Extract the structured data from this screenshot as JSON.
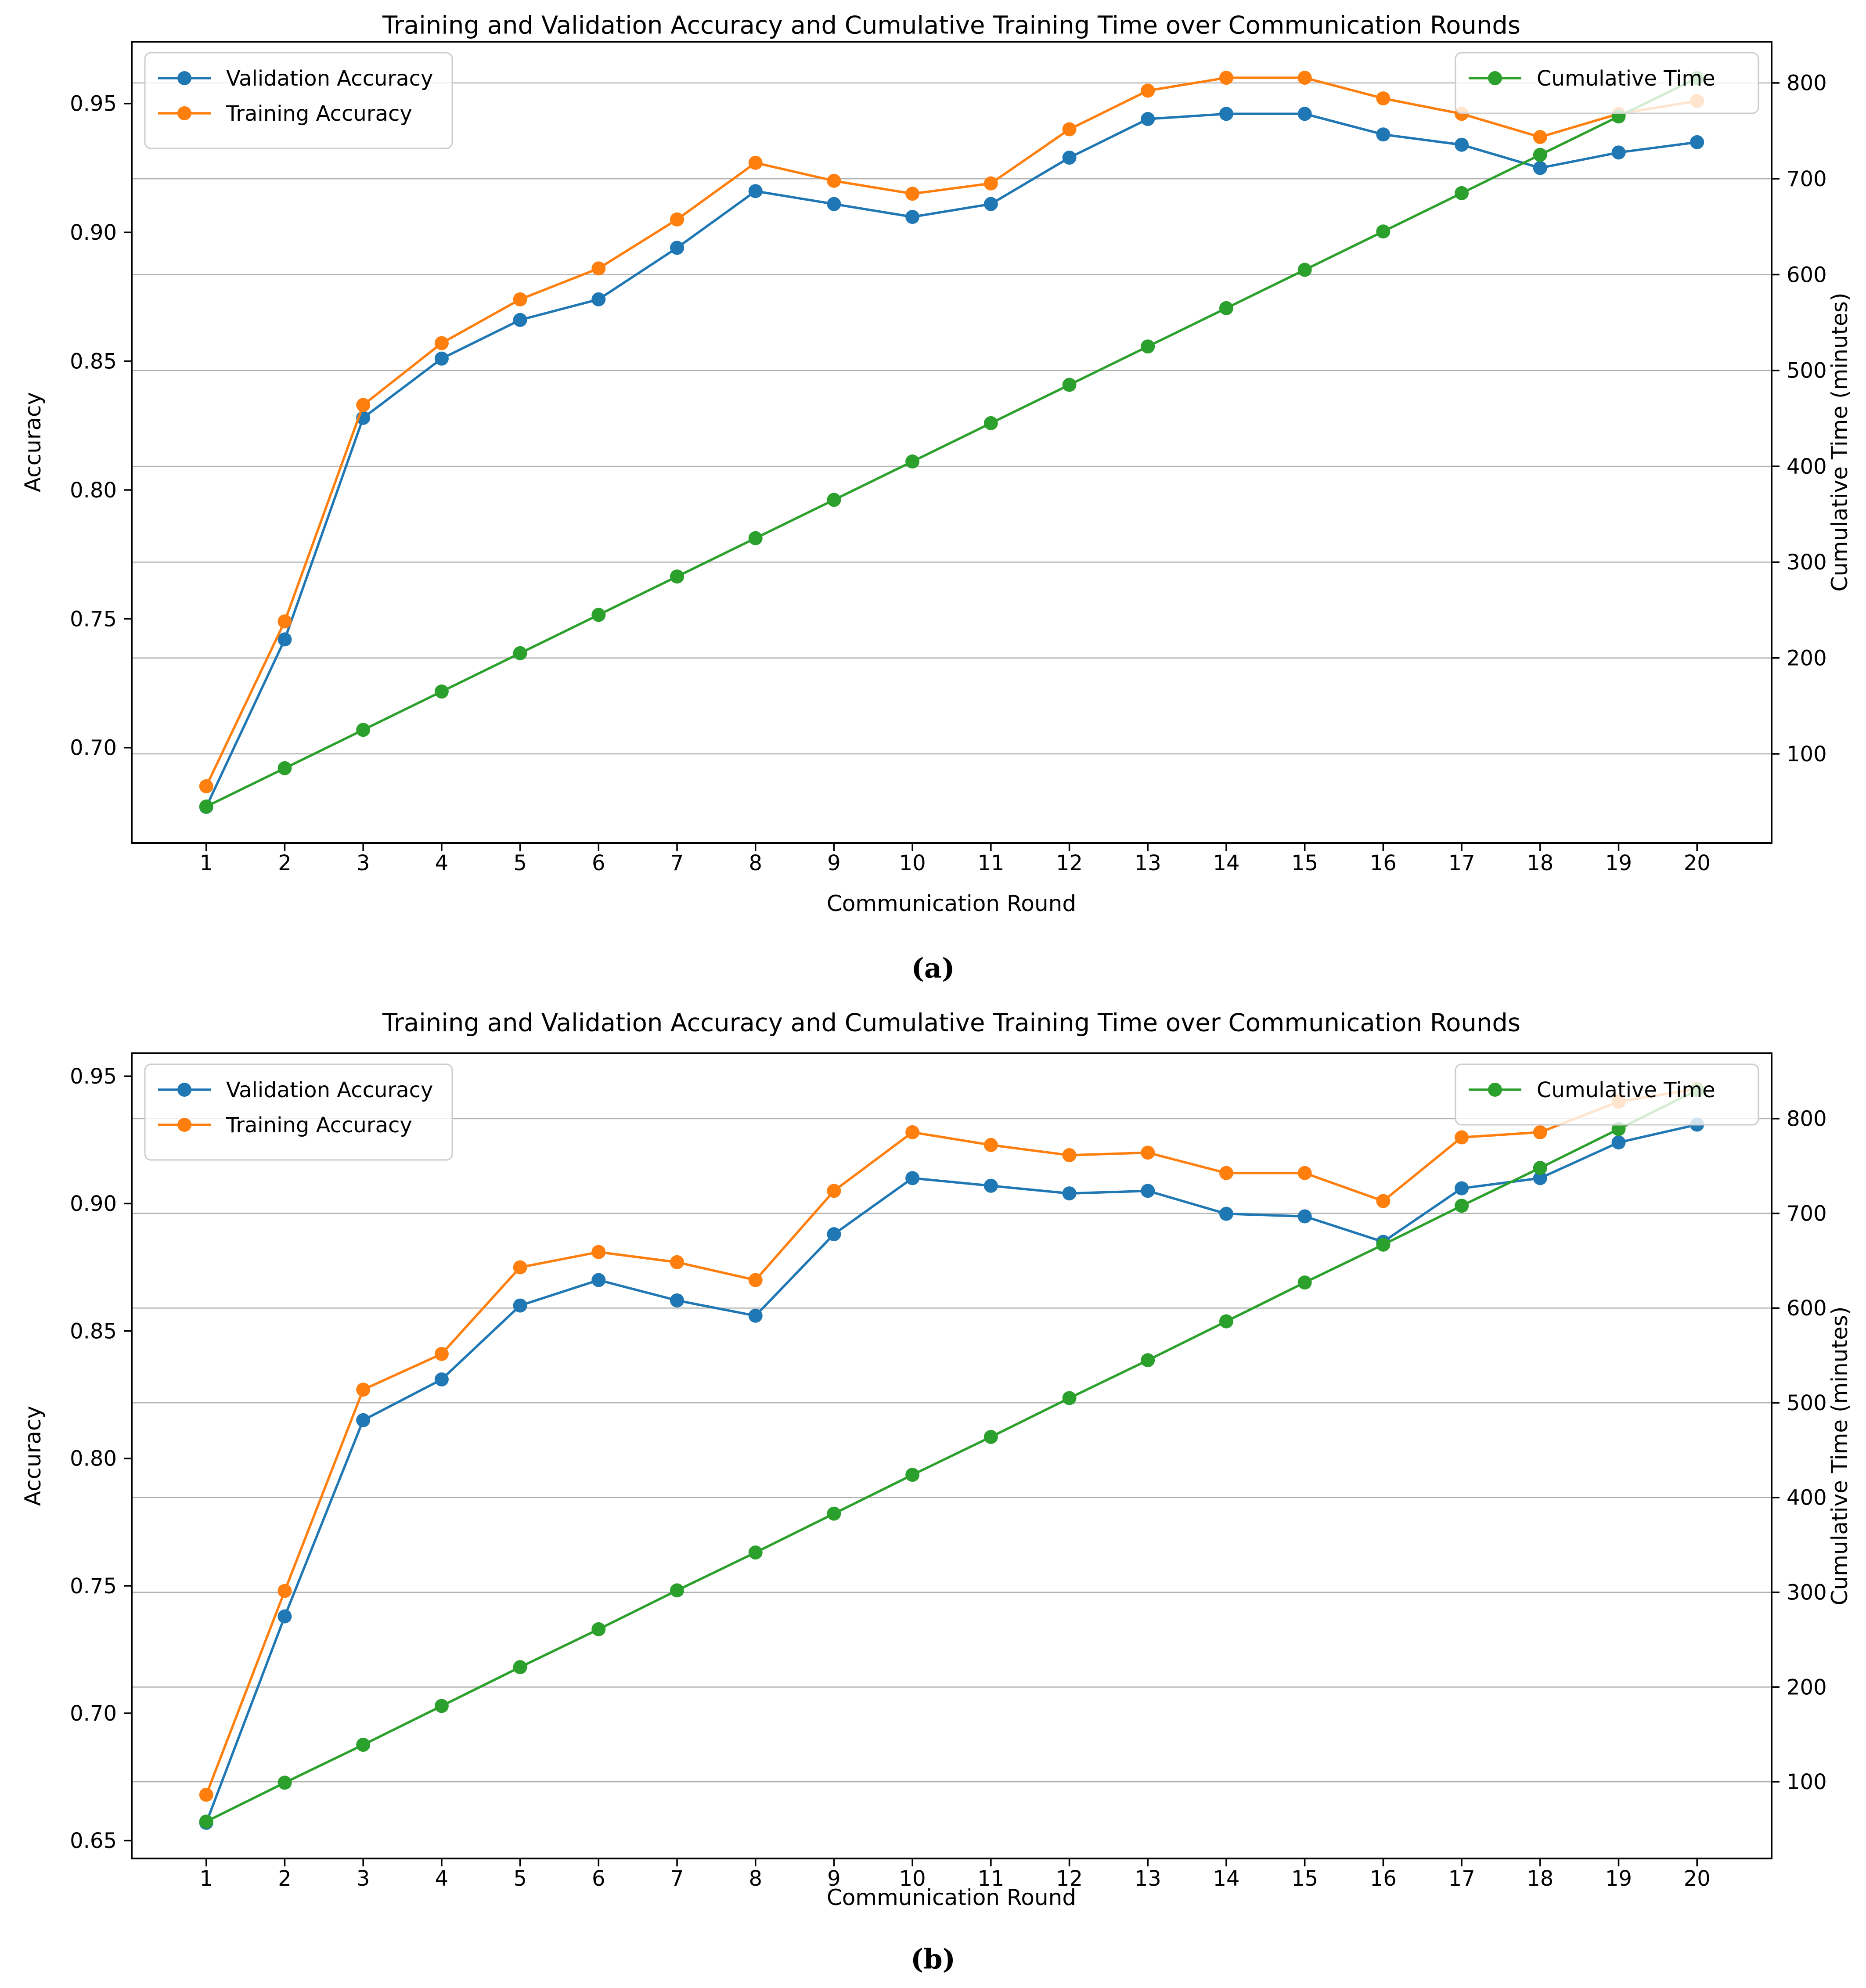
{
  "figures": [
    {
      "caption": "(a)"
    },
    {
      "caption": "(b)"
    }
  ],
  "colors": {
    "validation": "#1f77b4",
    "training": "#ff7f0e",
    "time": "#2ca02c",
    "grid": "#b0b0b0",
    "spine": "#000000",
    "legend_edge": "#cccccc",
    "legend_face": "rgba(255,255,255,0.8)"
  },
  "chart_data": [
    {
      "type": "line",
      "title": "Training and Validation Accuracy and Cumulative Training Time over Communication Rounds",
      "xlabel": "Communication Round",
      "ylabel": "Accuracy",
      "ylabel_right": "Cumulative Time (minutes)",
      "x": [
        1,
        2,
        3,
        4,
        5,
        6,
        7,
        8,
        9,
        10,
        11,
        12,
        13,
        14,
        15,
        16,
        17,
        18,
        19,
        20
      ],
      "series": [
        {
          "name": "Validation Accuracy",
          "axis": "left",
          "color_key": "validation",
          "values": [
            0.677,
            0.742,
            0.828,
            0.851,
            0.866,
            0.874,
            0.894,
            0.916,
            0.911,
            0.906,
            0.911,
            0.929,
            0.944,
            0.946,
            0.946,
            0.938,
            0.934,
            0.925,
            0.931,
            0.935
          ]
        },
        {
          "name": "Training Accuracy",
          "axis": "left",
          "color_key": "training",
          "values": [
            0.685,
            0.749,
            0.833,
            0.857,
            0.874,
            0.886,
            0.905,
            0.927,
            0.92,
            0.915,
            0.919,
            0.94,
            0.955,
            0.96,
            0.96,
            0.952,
            0.946,
            0.937,
            0.946,
            0.951
          ]
        },
        {
          "name": "Cumulative Time",
          "axis": "right",
          "color_key": "time",
          "values": [
            45,
            85,
            125,
            165,
            205,
            245,
            285,
            325,
            365,
            405,
            445,
            485,
            525,
            565,
            605,
            645,
            685,
            725,
            765,
            805
          ]
        }
      ],
      "legend_left": [
        "Validation Accuracy",
        "Training Accuracy"
      ],
      "legend_right": [
        "Cumulative Time"
      ],
      "legend_left_loc": "upper left",
      "legend_right_loc": "upper right",
      "xlim": [
        0.05,
        20.95
      ],
      "ylim_left": [
        0.663,
        0.974
      ],
      "yticks_left": [
        0.7,
        0.75,
        0.8,
        0.85,
        0.9,
        0.95
      ],
      "ylim_right": [
        7,
        843
      ],
      "yticks_right": [
        100,
        200,
        300,
        400,
        500,
        600,
        700,
        800
      ],
      "grid": "horizontal gridlines at right-axis ticks"
    },
    {
      "type": "line",
      "title": "Training and Validation Accuracy and Cumulative Training Time over Communication Rounds",
      "xlabel": "Communication Round",
      "ylabel": "Accuracy",
      "ylabel_right": "Cumulative Time (minutes)",
      "x": [
        1,
        2,
        3,
        4,
        5,
        6,
        7,
        8,
        9,
        10,
        11,
        12,
        13,
        14,
        15,
        16,
        17,
        18,
        19,
        20
      ],
      "series": [
        {
          "name": "Validation Accuracy",
          "axis": "left",
          "color_key": "validation",
          "values": [
            0.657,
            0.738,
            0.815,
            0.831,
            0.86,
            0.87,
            0.862,
            0.856,
            0.888,
            0.91,
            0.907,
            0.904,
            0.905,
            0.896,
            0.895,
            0.885,
            0.906,
            0.91,
            0.924,
            0.931
          ]
        },
        {
          "name": "Training Accuracy",
          "axis": "left",
          "color_key": "training",
          "values": [
            0.668,
            0.748,
            0.827,
            0.841,
            0.875,
            0.881,
            0.877,
            0.87,
            0.905,
            0.928,
            0.923,
            0.919,
            0.92,
            0.912,
            0.912,
            0.901,
            0.926,
            0.928,
            0.94,
            0.945
          ]
        },
        {
          "name": "Cumulative Time",
          "axis": "right",
          "color_key": "time",
          "values": [
            58,
            99,
            139,
            180,
            221,
            261,
            302,
            342,
            383,
            424,
            464,
            505,
            545,
            586,
            627,
            667,
            708,
            748,
            789,
            830
          ]
        }
      ],
      "legend_left": [
        "Validation Accuracy",
        "Training Accuracy"
      ],
      "legend_right": [
        "Cumulative Time"
      ],
      "legend_left_loc": "upper left",
      "legend_right_loc": "upper right",
      "xlim": [
        0.05,
        20.95
      ],
      "ylim_left": [
        0.643,
        0.959
      ],
      "yticks_left": [
        0.65,
        0.7,
        0.75,
        0.8,
        0.85,
        0.9,
        0.95
      ],
      "ylim_right": [
        19,
        869
      ],
      "yticks_right": [
        100,
        200,
        300,
        400,
        500,
        600,
        700,
        800
      ],
      "grid": "horizontal gridlines at right-axis ticks"
    }
  ]
}
